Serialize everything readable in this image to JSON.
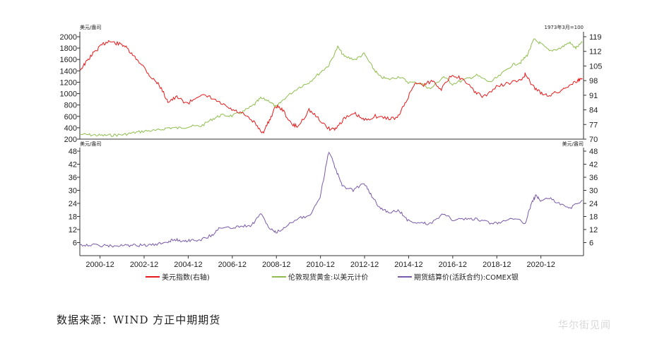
{
  "source_text": "数据来源：WIND  方正中期期货",
  "watermark_text": "华尔街见闻",
  "colors": {
    "usd": "#e8191a",
    "gold": "#8fbe4d",
    "silver": "#7a5aa8",
    "axis": "#333333"
  },
  "chart_data": [
    {
      "type": "line",
      "panel": "top",
      "left_unit": "美元/盎司",
      "right_unit": "1973年3月=100",
      "left_ylim": [
        200,
        2000
      ],
      "left_ticks": [
        "2000",
        "1800",
        "1600",
        "1400",
        "1200",
        "1000",
        "800",
        "600",
        "400",
        "200"
      ],
      "right_ylim": [
        70,
        119
      ],
      "right_ticks": [
        "119",
        "112",
        "105",
        "98",
        "91",
        "84",
        "77",
        "70"
      ],
      "series": [
        {
          "name": "美元指数(右轴)",
          "axis": "right",
          "x": [
            2000.0,
            2000.3,
            2000.6,
            2001.0,
            2001.3,
            2001.6,
            2002.0,
            2002.4,
            2002.8,
            2003.2,
            2003.6,
            2004.0,
            2004.4,
            2004.9,
            2005.4,
            2005.9,
            2006.4,
            2006.9,
            2007.4,
            2007.9,
            2008.3,
            2008.6,
            2008.9,
            2009.2,
            2009.6,
            2009.9,
            2010.4,
            2010.8,
            2011.3,
            2011.6,
            2012.0,
            2012.5,
            2012.9,
            2013.4,
            2013.9,
            2014.4,
            2014.8,
            2015.2,
            2015.6,
            2016.0,
            2016.4,
            2016.9,
            2017.3,
            2017.9,
            2018.3,
            2018.9,
            2019.5,
            2020.0,
            2020.2,
            2020.5,
            2020.9,
            2021.3,
            2021.8,
            2022.2,
            2022.6,
            2022.8
          ],
          "values": [
            103,
            107,
            111,
            115,
            117,
            116,
            115,
            110,
            106,
            100,
            96,
            88,
            90,
            87,
            91,
            90,
            87,
            84,
            82,
            78,
            73,
            79,
            86,
            84,
            77,
            76,
            84,
            80,
            75,
            75,
            80,
            82,
            79,
            81,
            80,
            80,
            88,
            97,
            96,
            98,
            94,
            101,
            99,
            93,
            90,
            95,
            97,
            98,
            101,
            96,
            92,
            91,
            93,
            96,
            98,
            99
          ]
        },
        {
          "name": "伦敦现货黄金:以美元计价",
          "axis": "left",
          "x": [
            2000.0,
            2000.5,
            2001.0,
            2001.5,
            2002.0,
            2002.5,
            2003.0,
            2003.5,
            2004.0,
            2004.5,
            2005.0,
            2005.5,
            2006.0,
            2006.4,
            2006.9,
            2007.4,
            2007.9,
            2008.2,
            2008.6,
            2008.9,
            2009.3,
            2009.9,
            2010.4,
            2010.9,
            2011.3,
            2011.7,
            2012.0,
            2012.5,
            2012.9,
            2013.3,
            2013.6,
            2014.0,
            2014.5,
            2014.9,
            2015.5,
            2015.9,
            2016.5,
            2016.9,
            2017.5,
            2018.0,
            2018.6,
            2019.0,
            2019.6,
            2020.0,
            2020.3,
            2020.6,
            2020.9,
            2021.3,
            2021.8,
            2022.2,
            2022.5,
            2022.8
          ],
          "values": [
            285,
            275,
            265,
            270,
            280,
            315,
            345,
            350,
            400,
            395,
            425,
            430,
            550,
            620,
            610,
            680,
            800,
            920,
            870,
            760,
            920,
            1100,
            1200,
            1370,
            1500,
            1820,
            1650,
            1600,
            1700,
            1450,
            1300,
            1250,
            1300,
            1200,
            1180,
            1080,
            1300,
            1170,
            1250,
            1320,
            1200,
            1300,
            1500,
            1550,
            1680,
            1950,
            1880,
            1750,
            1800,
            1900,
            1800,
            1900
          ]
        }
      ]
    },
    {
      "type": "line",
      "panel": "bottom",
      "left_unit": "美元/盎司",
      "right_unit": "美元/盎司",
      "ylim": [
        0,
        48
      ],
      "ticks": [
        "48",
        "42",
        "36",
        "30",
        "24",
        "18",
        "12",
        "6"
      ],
      "x_tick_labels": [
        "2000-12",
        "2002-12",
        "2004-12",
        "2006-12",
        "2008-12",
        "2010-12",
        "2012-12",
        "2014-12",
        "2016-12",
        "2018-12",
        "2020-12"
      ],
      "series": [
        {
          "name": "期货结算价(活跃合约):COMEX银",
          "x": [
            2000.0,
            2000.5,
            2001.0,
            2001.5,
            2002.0,
            2002.5,
            2003.0,
            2003.5,
            2004.0,
            2004.3,
            2004.6,
            2005.0,
            2005.5,
            2006.0,
            2006.3,
            2006.8,
            2007.3,
            2007.8,
            2008.2,
            2008.6,
            2008.9,
            2009.3,
            2009.9,
            2010.4,
            2010.9,
            2011.3,
            2011.6,
            2011.9,
            2012.4,
            2012.9,
            2013.2,
            2013.6,
            2014.0,
            2014.5,
            2014.9,
            2015.5,
            2015.9,
            2016.5,
            2016.9,
            2017.5,
            2018.0,
            2018.6,
            2019.0,
            2019.6,
            2020.2,
            2020.5,
            2020.7,
            2020.9,
            2021.3,
            2021.8,
            2022.3,
            2022.8
          ],
          "values": [
            5.0,
            4.9,
            4.6,
            4.4,
            4.6,
            4.7,
            4.8,
            5.0,
            6.5,
            7.5,
            6.8,
            7.0,
            7.4,
            9.5,
            12.5,
            12.8,
            13.5,
            14.0,
            19.5,
            12.5,
            10.5,
            13.0,
            17.5,
            18.0,
            27.0,
            48.0,
            40.0,
            32.0,
            30.0,
            33.5,
            28.0,
            22.0,
            20.0,
            20.5,
            16.0,
            15.0,
            14.5,
            19.5,
            16.5,
            16.8,
            16.7,
            15.0,
            15.2,
            17.5,
            15.0,
            24.0,
            28.0,
            25.0,
            26.5,
            23.5,
            22.0,
            25.5
          ]
        }
      ]
    }
  ],
  "legend": [
    {
      "key": "usd",
      "label": "美元指数(右轴)"
    },
    {
      "key": "gold",
      "label": "伦敦现货黄金:以美元计价"
    },
    {
      "key": "silver",
      "label": "期货结算价(活跃合约):COMEX银"
    }
  ]
}
